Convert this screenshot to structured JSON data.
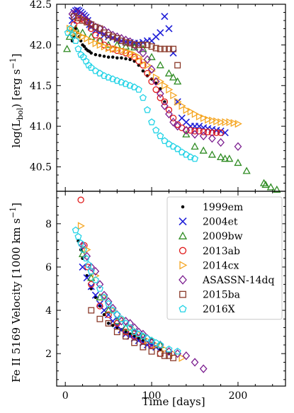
{
  "chart_data": [
    {
      "type": "scatter",
      "panel": "top",
      "ylabel": "log(L_bol) [erg s^-1]",
      "ylabel_parts": {
        "main": "log(L",
        "sub": "bol",
        "mid": ") [erg s",
        "sup": "−1",
        "end": "]"
      },
      "xlim": [
        -10,
        255
      ],
      "ylim": [
        40.2,
        42.5
      ],
      "yticks": [
        "40.5",
        "41.0",
        "41.5",
        "42.0",
        "42.5"
      ],
      "grid": false,
      "series": [
        {
          "name": "1999em",
          "color": "#000000",
          "marker": "dot",
          "x": [
            8,
            10,
            12,
            14,
            16,
            18,
            20,
            22,
            24,
            26,
            28,
            30,
            35,
            40,
            45,
            50,
            55,
            60,
            65,
            70,
            75,
            80,
            85,
            90,
            95,
            100,
            105,
            110,
            115
          ],
          "y": [
            42.05,
            42.1,
            42.2,
            42.15,
            42.1,
            42.05,
            42.0,
            41.98,
            41.95,
            41.93,
            41.92,
            41.9,
            41.88,
            41.87,
            41.86,
            41.85,
            41.85,
            41.84,
            41.84,
            41.83,
            41.82,
            41.8,
            41.75,
            41.68,
            41.62,
            41.58,
            41.53,
            41.46,
            41.3
          ]
        },
        {
          "name": "2004et",
          "color": "#1f1fd8",
          "marker": "x",
          "x": [
            8,
            10,
            12,
            14,
            16,
            18,
            20,
            22,
            24,
            26,
            28,
            30,
            35,
            40,
            45,
            50,
            55,
            60,
            65,
            70,
            75,
            80,
            85,
            90,
            95,
            100,
            105,
            110,
            115,
            120,
            125,
            130,
            135,
            140,
            145,
            150,
            155,
            160,
            165,
            170,
            175,
            180,
            185
          ],
          "y": [
            42.3,
            42.4,
            42.42,
            42.43,
            42.42,
            42.4,
            42.38,
            42.36,
            42.34,
            42.3,
            42.25,
            42.22,
            42.18,
            42.15,
            42.12,
            42.1,
            42.09,
            42.07,
            42.05,
            42.04,
            42.03,
            42.02,
            42.02,
            42.03,
            42.05,
            42.05,
            42.1,
            42.15,
            42.35,
            42.2,
            41.9,
            41.3,
            41.1,
            41.05,
            41.0,
            41.0,
            41.0,
            40.98,
            40.97,
            40.96,
            40.95,
            40.94,
            40.92
          ]
        },
        {
          "name": "2009bw",
          "color": "#2e8b22",
          "marker": "triangle",
          "x": [
            2,
            5,
            8,
            12,
            20,
            30,
            40,
            50,
            60,
            70,
            80,
            90,
            100,
            110,
            120,
            125,
            130,
            140,
            150,
            160,
            170,
            180,
            185,
            190,
            200,
            210,
            230,
            232,
            238,
            245
          ],
          "y": [
            41.95,
            42.1,
            42.15,
            42.2,
            42.15,
            42.1,
            42.05,
            42.0,
            42.0,
            41.98,
            41.97,
            41.95,
            41.85,
            41.75,
            41.65,
            41.6,
            41.55,
            40.9,
            40.75,
            40.7,
            40.65,
            40.62,
            40.6,
            40.6,
            40.55,
            40.45,
            40.3,
            40.28,
            40.25,
            40.22
          ]
        },
        {
          "name": "2013ab",
          "color": "#e01b1b",
          "marker": "circle",
          "x": [
            10,
            14,
            18,
            22,
            26,
            30,
            35,
            40,
            45,
            50,
            55,
            60,
            65,
            70,
            75,
            80,
            85,
            90,
            95,
            100,
            105,
            110,
            115,
            120,
            125,
            130,
            135,
            140,
            145,
            150,
            155,
            160,
            165,
            170,
            175,
            180
          ],
          "y": [
            42.25,
            42.3,
            42.32,
            42.3,
            42.28,
            42.2,
            42.12,
            42.05,
            42.0,
            41.97,
            41.95,
            41.93,
            41.92,
            41.9,
            41.88,
            41.85,
            41.8,
            41.75,
            41.65,
            41.55,
            41.45,
            41.35,
            41.3,
            41.2,
            41.1,
            41.02,
            40.98,
            40.95,
            40.95,
            40.94,
            40.94,
            40.93,
            40.93,
            40.92,
            40.92,
            40.92
          ]
        },
        {
          "name": "2014cx",
          "color": "#f5a623",
          "marker": "triangle-right",
          "x": [
            5,
            8,
            12,
            16,
            20,
            25,
            30,
            35,
            40,
            45,
            50,
            55,
            60,
            65,
            70,
            75,
            80,
            85,
            90,
            95,
            100,
            105,
            110,
            115,
            120,
            125,
            130,
            135,
            140,
            145,
            150,
            155,
            160,
            165,
            170,
            175,
            180,
            185,
            190,
            195,
            200
          ],
          "y": [
            42.2,
            42.18,
            42.15,
            42.12,
            42.1,
            42.08,
            42.05,
            42.02,
            42.0,
            41.98,
            41.96,
            41.95,
            41.95,
            41.93,
            41.92,
            41.9,
            41.88,
            41.85,
            41.8,
            41.75,
            41.68,
            41.6,
            41.55,
            41.5,
            41.45,
            41.38,
            41.3,
            41.25,
            41.2,
            41.18,
            41.15,
            41.12,
            41.1,
            41.08,
            41.07,
            41.06,
            41.05,
            41.05,
            41.05,
            41.04,
            41.03
          ]
        },
        {
          "name": "ASASSN-14dq",
          "color": "#7b1d8f",
          "marker": "diamond",
          "x": [
            8,
            12,
            16,
            20,
            25,
            30,
            35,
            40,
            45,
            50,
            55,
            60,
            65,
            70,
            75,
            80,
            85,
            90,
            95,
            100,
            105,
            110,
            115,
            120,
            125,
            130,
            140,
            150,
            160,
            170,
            180,
            200
          ],
          "y": [
            42.38,
            42.4,
            42.38,
            42.35,
            42.3,
            42.25,
            42.22,
            42.2,
            42.18,
            42.15,
            42.12,
            42.1,
            42.08,
            42.06,
            42.04,
            42.0,
            41.95,
            41.9,
            41.82,
            41.7,
            41.55,
            41.4,
            41.25,
            41.15,
            41.05,
            41.0,
            40.95,
            40.9,
            40.88,
            40.85,
            40.8,
            40.75
          ]
        },
        {
          "name": "2015ba",
          "color": "#8b3a2a",
          "marker": "square",
          "x": [
            10,
            15,
            20,
            25,
            30,
            35,
            40,
            45,
            50,
            55,
            60,
            65,
            70,
            75,
            80,
            85,
            90,
            95,
            100,
            105,
            110,
            115,
            120,
            125,
            130
          ],
          "y": [
            42.35,
            42.33,
            42.3,
            42.28,
            42.25,
            42.22,
            42.2,
            42.15,
            42.12,
            42.1,
            42.08,
            42.05,
            42.03,
            42.02,
            42.0,
            42.0,
            42.0,
            42.0,
            41.98,
            41.96,
            41.95,
            41.95,
            41.95,
            41.95,
            41.75
          ]
        },
        {
          "name": "2016X",
          "color": "#22d3e6",
          "marker": "pentagon",
          "x": [
            3,
            6,
            9,
            12,
            15,
            18,
            21,
            24,
            27,
            30,
            35,
            40,
            45,
            50,
            55,
            60,
            65,
            70,
            75,
            80,
            85,
            90,
            95,
            100,
            105,
            110,
            115,
            120,
            125,
            130,
            135,
            140,
            145,
            150
          ],
          "y": [
            42.15,
            42.2,
            42.12,
            42.05,
            41.95,
            41.88,
            41.85,
            41.8,
            41.75,
            41.72,
            41.68,
            41.65,
            41.62,
            41.6,
            41.58,
            41.56,
            41.54,
            41.52,
            41.5,
            41.48,
            41.45,
            41.35,
            41.2,
            41.05,
            40.95,
            40.88,
            40.82,
            40.78,
            40.75,
            40.72,
            40.68,
            40.65,
            40.62,
            40.6
          ]
        }
      ]
    },
    {
      "type": "scatter",
      "panel": "bottom",
      "xlabel": "Time [days]",
      "ylabel": "Fe II 5169 Velocity [1000 km s^-1]",
      "ylabel_parts": {
        "main": "Fe II 5169 Velocity [1000 km s",
        "sup": "−1",
        "end": "]"
      },
      "xlim": [
        -10,
        255
      ],
      "ylim": [
        0.5,
        9.5
      ],
      "xticks": [
        "0",
        "100",
        "200"
      ],
      "yticks": [
        "2",
        "4",
        "6",
        "8"
      ],
      "legend": "top-right",
      "grid": false,
      "series": [
        {
          "name": "1999em",
          "color": "#000000",
          "marker": "dot",
          "x": [
            15,
            18,
            20,
            25,
            30,
            35,
            40,
            45,
            50,
            55,
            60,
            65,
            70,
            75,
            80,
            85,
            90,
            100,
            110,
            120
          ],
          "y": [
            7.2,
            6.8,
            6.4,
            5.6,
            5.0,
            4.6,
            4.2,
            3.8,
            3.4,
            3.3,
            3.2,
            3.1,
            3.0,
            2.9,
            2.8,
            2.7,
            2.6,
            2.4,
            2.2,
            2.0
          ]
        },
        {
          "name": "2004et",
          "color": "#1f1fd8",
          "marker": "x",
          "x": [
            20,
            25,
            30,
            35,
            40,
            45,
            50,
            55,
            60,
            65,
            70,
            75,
            80,
            85,
            90,
            95,
            100,
            105
          ],
          "y": [
            6.0,
            5.5,
            5.1,
            4.7,
            4.3,
            4.0,
            3.8,
            3.5,
            3.3,
            3.1,
            2.9,
            2.8,
            2.7,
            2.6,
            2.5,
            2.4,
            2.4,
            2.3
          ]
        },
        {
          "name": "2009bw",
          "color": "#2e8b22",
          "marker": "triangle",
          "x": [
            20,
            30,
            40,
            50,
            60,
            70,
            80,
            90,
            100,
            110
          ],
          "y": [
            6.6,
            5.5,
            4.6,
            4.0,
            3.5,
            3.2,
            3.0,
            2.8,
            2.6,
            2.4
          ]
        },
        {
          "name": "2013ab",
          "color": "#e01b1b",
          "marker": "circle",
          "x": [
            18,
            22,
            26,
            30,
            40,
            50,
            60,
            70,
            80,
            90,
            100,
            110
          ],
          "y": [
            9.1,
            7.0,
            6.0,
            5.2,
            4.2,
            3.8,
            3.4,
            3.0,
            2.8,
            2.6,
            2.4,
            2.0
          ]
        },
        {
          "name": "2014cx",
          "color": "#f5a623",
          "marker": "triangle-right",
          "x": [
            18,
            25,
            35,
            45,
            55,
            65,
            75,
            85,
            95,
            105,
            115,
            125,
            135
          ],
          "y": [
            7.9,
            6.8,
            5.6,
            4.6,
            4.0,
            3.6,
            3.2,
            2.9,
            2.6,
            2.4,
            2.2,
            2.0,
            1.8
          ]
        },
        {
          "name": "ASASSN-14dq",
          "color": "#7b1d8f",
          "marker": "diamond",
          "x": [
            20,
            25,
            30,
            35,
            40,
            45,
            50,
            55,
            60,
            65,
            70,
            75,
            80,
            85,
            90,
            95,
            100,
            110,
            120,
            130,
            140,
            150,
            160
          ],
          "y": [
            7.0,
            6.5,
            6.0,
            5.8,
            5.2,
            4.7,
            4.4,
            4.1,
            3.8,
            3.5,
            3.5,
            3.4,
            3.2,
            3.0,
            2.9,
            2.7,
            2.5,
            2.4,
            2.1,
            2.0,
            1.9,
            1.6,
            1.3
          ]
        },
        {
          "name": "2015ba",
          "color": "#8b3a2a",
          "marker": "square",
          "x": [
            30,
            40,
            50,
            60,
            70,
            80,
            90,
            100,
            110,
            115,
            120,
            125
          ],
          "y": [
            4.0,
            3.6,
            3.4,
            3.0,
            2.8,
            2.5,
            2.3,
            2.1,
            2.0,
            1.9,
            1.9,
            1.8
          ]
        },
        {
          "name": "2016X",
          "color": "#22d3e6",
          "marker": "pentagon",
          "x": [
            12,
            15,
            18,
            21,
            24,
            27,
            30,
            35,
            40,
            45,
            50,
            55,
            60,
            65,
            70,
            75,
            80,
            85,
            90,
            95,
            100,
            105,
            110,
            120,
            130
          ],
          "y": [
            7.7,
            7.4,
            7.1,
            6.8,
            6.4,
            6.1,
            5.8,
            5.4,
            5.0,
            4.6,
            4.3,
            4.0,
            3.8,
            3.6,
            3.4,
            3.2,
            3.0,
            2.9,
            2.8,
            2.7,
            2.6,
            2.5,
            2.4,
            2.2,
            2.1
          ]
        }
      ]
    }
  ]
}
